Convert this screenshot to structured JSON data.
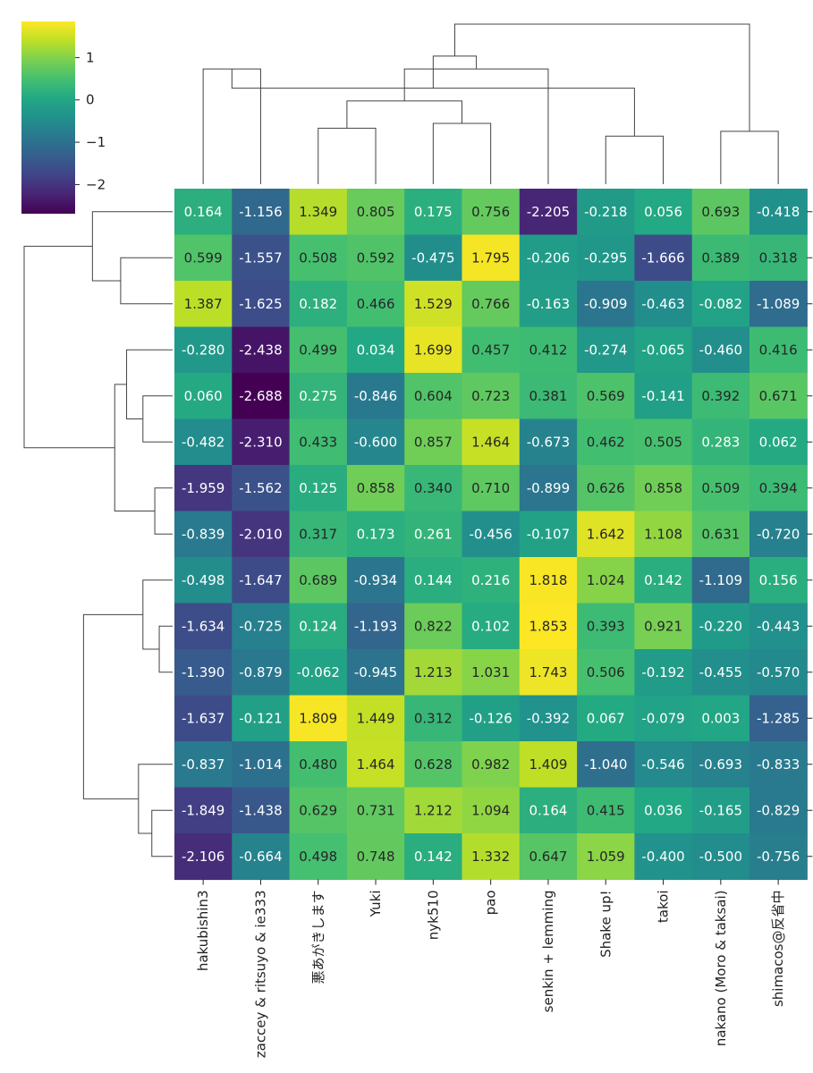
{
  "chart_data": {
    "type": "heatmap",
    "title": "",
    "colormap": "viridis",
    "value_range": [
      -2.688,
      1.853
    ],
    "columns": [
      "hakubishin3",
      "zaccey & ritsuyo & ie333",
      "悪あがきします",
      "Yuki",
      "nyk510",
      "pao",
      "senkin + lemming",
      "Shake up!",
      "takoi",
      "nakano (Moro & taksai)",
      "shimacos@反省中"
    ],
    "values": [
      [
        0.164,
        -1.156,
        1.349,
        0.805,
        0.175,
        0.756,
        -2.205,
        -0.218,
        0.056,
        0.693,
        -0.418
      ],
      [
        0.599,
        -1.557,
        0.508,
        0.592,
        -0.475,
        1.795,
        -0.206,
        -0.295,
        -1.666,
        0.389,
        0.318
      ],
      [
        1.387,
        -1.625,
        0.182,
        0.466,
        1.529,
        0.766,
        -0.163,
        -0.909,
        -0.463,
        -0.082,
        -1.089
      ],
      [
        -0.28,
        -2.438,
        0.499,
        0.034,
        1.699,
        0.457,
        0.412,
        -0.274,
        -0.065,
        -0.46,
        0.416
      ],
      [
        0.06,
        -2.688,
        0.275,
        -0.846,
        0.604,
        0.723,
        0.381,
        0.569,
        -0.141,
        0.392,
        0.671
      ],
      [
        -0.482,
        -2.31,
        0.433,
        -0.6,
        0.857,
        1.464,
        -0.673,
        0.462,
        0.505,
        0.283,
        0.062
      ],
      [
        -1.959,
        -1.562,
        0.125,
        0.858,
        0.34,
        0.71,
        -0.899,
        0.626,
        0.858,
        0.509,
        0.394
      ],
      [
        -0.839,
        -2.01,
        0.317,
        0.173,
        0.261,
        -0.456,
        -0.107,
        1.642,
        1.108,
        0.631,
        -0.72
      ],
      [
        -0.498,
        -1.647,
        0.689,
        -0.934,
        0.144,
        0.216,
        1.818,
        1.024,
        0.142,
        -1.109,
        0.156
      ],
      [
        -1.634,
        -0.725,
        0.124,
        -1.193,
        0.822,
        0.102,
        1.853,
        0.393,
        0.921,
        -0.22,
        -0.443
      ],
      [
        -1.39,
        -0.879,
        -0.062,
        -0.945,
        1.213,
        1.031,
        1.743,
        0.506,
        -0.192,
        -0.455,
        -0.57
      ],
      [
        -1.637,
        -0.121,
        1.809,
        1.449,
        0.312,
        -0.126,
        -0.392,
        0.067,
        -0.079,
        0.003,
        -1.285
      ],
      [
        -0.837,
        -1.014,
        0.48,
        1.464,
        0.628,
        0.982,
        1.409,
        -1.04,
        -0.546,
        -0.693,
        -0.833
      ],
      [
        -1.849,
        -1.438,
        0.629,
        0.731,
        1.212,
        1.094,
        0.164,
        0.415,
        0.036,
        -0.165,
        -0.829
      ],
      [
        -2.106,
        -0.664,
        0.498,
        0.748,
        0.142,
        1.332,
        0.647,
        1.059,
        -0.4,
        -0.5,
        -0.756
      ]
    ],
    "cell_labels": [
      [
        "0.164",
        "-1.156",
        "1.349",
        "0.805",
        "0.175",
        "0.756",
        "-2.205",
        "-0.218",
        "0.056",
        "0.693",
        "-0.418"
      ],
      [
        "0.599",
        "-1.557",
        "0.508",
        "0.592",
        "-0.475",
        "1.795",
        "-0.206",
        "-0.295",
        "-1.666",
        "0.389",
        "0.318"
      ],
      [
        "1.387",
        "-1.625",
        "0.182",
        "0.466",
        "1.529",
        "0.766",
        "-0.163",
        "-0.909",
        "-0.463",
        "-0.082",
        "-1.089"
      ],
      [
        "-0.280",
        "-2.438",
        "0.499",
        "0.034",
        "1.699",
        "0.457",
        "0.412",
        "-0.274",
        "-0.065",
        "-0.460",
        "0.416"
      ],
      [
        "0.060",
        "-2.688",
        "0.275",
        "-0.846",
        "0.604",
        "0.723",
        "0.381",
        "0.569",
        "-0.141",
        "0.392",
        "0.671"
      ],
      [
        "-0.482",
        "-2.310",
        "0.433",
        "-0.600",
        "0.857",
        "1.464",
        "-0.673",
        "0.462",
        "0.505",
        "0.283",
        "0.062"
      ],
      [
        "-1.959",
        "-1.562",
        "0.125",
        "0.858",
        "0.340",
        "0.710",
        "-0.899",
        "0.626",
        "0.858",
        "0.509",
        "0.394"
      ],
      [
        "-0.839",
        "-2.010",
        "0.317",
        "0.173",
        "0.261",
        "-0.456",
        "-0.107",
        "1.642",
        "1.108",
        "0.631",
        "-0.720"
      ],
      [
        "-0.498",
        "-1.647",
        "0.689",
        "-0.934",
        "0.144",
        "0.216",
        "1.818",
        "1.024",
        "0.142",
        "-1.109",
        "0.156"
      ],
      [
        "-1.634",
        "-0.725",
        "0.124",
        "-1.193",
        "0.822",
        "0.102",
        "1.853",
        "0.393",
        "0.921",
        "-0.220",
        "-0.443"
      ],
      [
        "-1.390",
        "-0.879",
        "-0.062",
        "-0.945",
        "1.213",
        "1.031",
        "1.743",
        "0.506",
        "-0.192",
        "-0.455",
        "-0.570"
      ],
      [
        "-1.637",
        "-0.121",
        "1.809",
        "1.449",
        "0.312",
        "-0.126",
        "-0.392",
        "0.067",
        "-0.079",
        "0.003",
        "-1.285"
      ],
      [
        "-0.837",
        "-1.014",
        "0.480",
        "1.464",
        "0.628",
        "0.982",
        "1.409",
        "-1.040",
        "-0.546",
        "-0.693",
        "-0.833"
      ],
      [
        "-1.849",
        "-1.438",
        "0.629",
        "0.731",
        "1.212",
        "1.094",
        "0.164",
        "0.415",
        "0.036",
        "-0.165",
        "-0.829"
      ],
      [
        "-2.106",
        "-0.664",
        "0.498",
        "0.748",
        "0.142",
        "1.332",
        "0.647",
        "1.059",
        "-0.400",
        "-0.500",
        "-0.756"
      ]
    ],
    "colorbar": {
      "ticks": [
        1,
        0,
        -1,
        -2
      ],
      "tick_labels": [
        "1",
        "0",
        "−1",
        "−2"
      ]
    },
    "col_dendrogram": {
      "merges": [
        [
          2,
          3
        ],
        [
          4,
          5
        ],
        [
          0,
          1
        ],
        [
          7,
          8
        ],
        [
          9,
          10
        ],
        [
          11,
          12
        ],
        [
          13,
          14
        ],
        [
          6,
          16
        ],
        [
          18,
          17
        ],
        [
          15,
          19
        ]
      ],
      "merge_levels": [
        0.35,
        0.38,
        0.72,
        0.3,
        0.33,
        0.52,
        0.6,
        0.72,
        0.8,
        1.0
      ]
    },
    "row_dendrogram": {
      "merges": [
        [
          1,
          2
        ],
        [
          4,
          5
        ],
        [
          6,
          7
        ],
        [
          3,
          16
        ],
        [
          9,
          10
        ],
        [
          13,
          14
        ],
        [
          8,
          19
        ],
        [
          12,
          20
        ],
        [
          17,
          18
        ],
        [
          0,
          15
        ],
        [
          21,
          22
        ],
        [
          24,
          23
        ]
      ],
      "merge_levels": [
        0.35,
        0.2,
        0.12,
        0.31,
        0.09,
        0.14,
        0.2,
        0.23,
        0.39,
        0.54,
        0.6,
        1.0
      ]
    }
  }
}
